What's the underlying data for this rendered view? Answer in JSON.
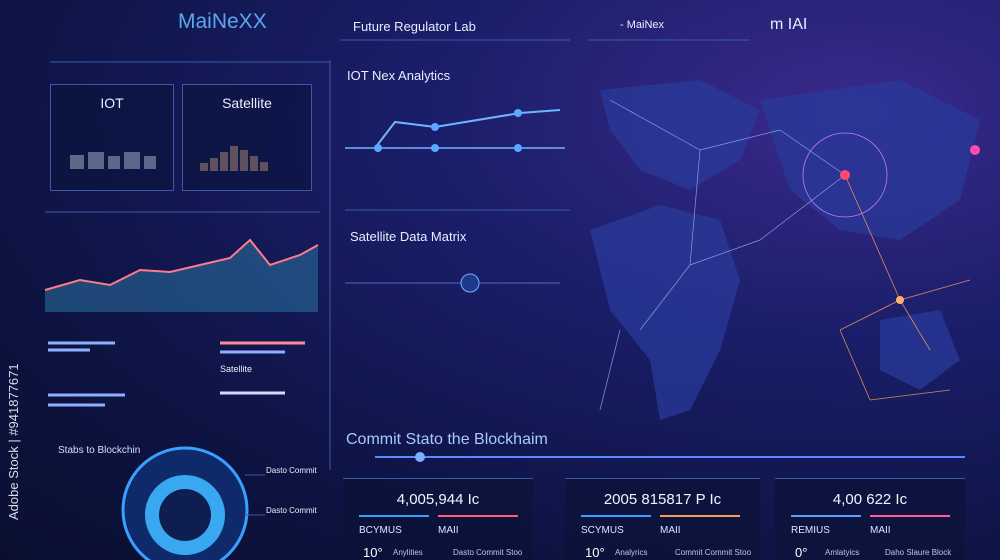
{
  "header": {
    "logo": "MaiNeXX",
    "title": "Future Regulator Lab",
    "subtitle": "- MaiNex",
    "menu": "m IAI"
  },
  "panels": {
    "iot": "IOT",
    "satellite": "Satellite",
    "iot_analytics": "IOT Nex Analytics",
    "satellite_matrix": "Satellite Data Matrix",
    "list_label": "Satellite",
    "blockchain_status": "Stabs to Blockchin",
    "commit_1": "Dasto Commit",
    "commit_2": "Dasto Commit"
  },
  "blockchain": {
    "title": "Commit Stato the Blockhaim",
    "cards": [
      {
        "value": "4,005,944 Ic",
        "label_1": "BCYMUS",
        "label_2": "MAII",
        "stat": "10°",
        "caption_1": "Anylities",
        "caption_2": "Dasto Commit Stoo"
      },
      {
        "value": "2005 815817 P Ic",
        "label_1": "SCYMUS",
        "label_2": "MAII",
        "stat": "10°",
        "caption_1": "Analyrics",
        "caption_2": "Commit Commit Stoo"
      },
      {
        "value": "4,00 622 Ic",
        "label_1": "REMIUS",
        "label_2": "MAII",
        "stat": "0°",
        "caption_1": "Amlatyics",
        "caption_2": "Daho Slaure Block"
      }
    ]
  },
  "watermark": "Adobe Stock | #941877671"
}
